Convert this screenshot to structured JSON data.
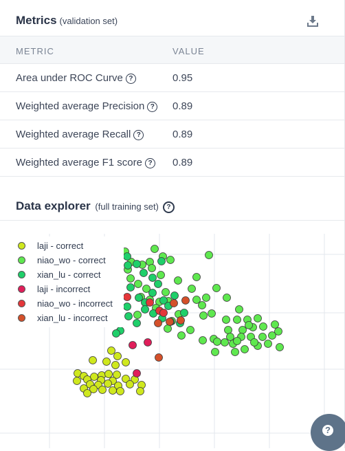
{
  "metrics": {
    "title": "Metrics",
    "subtitle": "(validation set)",
    "download_icon": "download-icon",
    "columns": {
      "metric": "METRIC",
      "value": "VALUE"
    },
    "rows": [
      {
        "name": "Area under ROC Curve",
        "value": "0.95"
      },
      {
        "name": "Weighted average Precision",
        "value": "0.89"
      },
      {
        "name": "Weighted average Recall",
        "value": "0.89"
      },
      {
        "name": "Weighted average F1 score",
        "value": "0.89"
      }
    ]
  },
  "explorer": {
    "title": "Data explorer",
    "subtitle": "(full training set)",
    "legend": [
      {
        "label": "laji - correct",
        "color": "#cfe81e"
      },
      {
        "label": "niao_wo - correct",
        "color": "#5fe84f"
      },
      {
        "label": "xian_lu - correct",
        "color": "#1fcf6a"
      },
      {
        "label": "laji - incorrect",
        "color": "#e01e5a"
      },
      {
        "label": "niao_wo - incorrect",
        "color": "#e4373a"
      },
      {
        "label": "xian_lu - incorrect",
        "color": "#d4502a"
      }
    ]
  },
  "help_icon": "help-icon",
  "colors": {
    "grid": "#e3e7ec",
    "point_stroke": "#3a3a3a"
  }
}
